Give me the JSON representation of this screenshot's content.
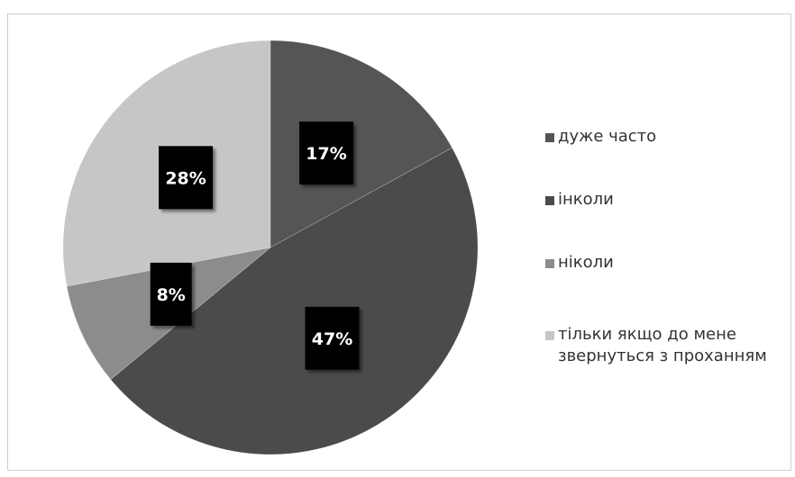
{
  "chart_data": {
    "type": "pie",
    "title": "",
    "legend_position": "right",
    "start_angle_deg": 0,
    "direction": "clockwise",
    "slices": [
      {
        "label": "дуже часто",
        "value": 17,
        "value_label": "17%",
        "color": "#555555"
      },
      {
        "label": "інколи",
        "value": 47,
        "value_label": "47%",
        "color": "#4b4b4b"
      },
      {
        "label": "ніколи",
        "value": 8,
        "value_label": "8%",
        "color": "#8c8c8c"
      },
      {
        "label": "тільки якщо до мене\nзвернуться з проханням",
        "value": 28,
        "value_label": "28%",
        "color": "#c6c6c6"
      }
    ],
    "slice_label_box_color": "#000000",
    "slice_label_text_color": "#ffffff"
  }
}
